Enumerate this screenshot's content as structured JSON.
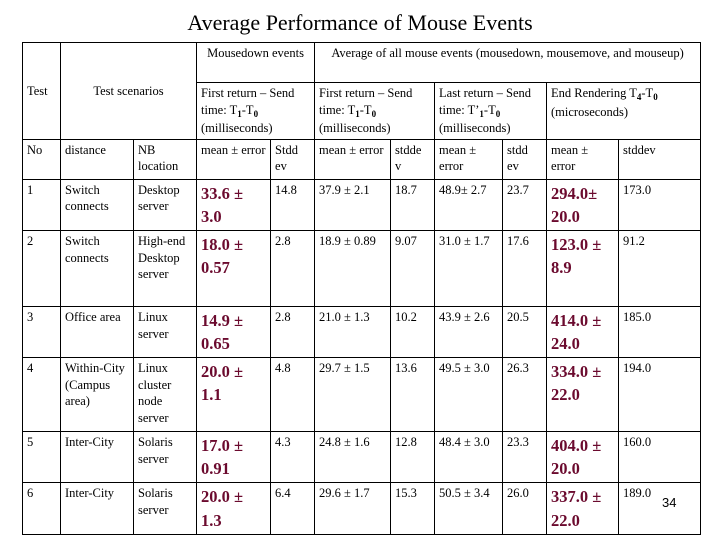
{
  "title": "Average Performance of Mouse Events",
  "header": {
    "test": "Test",
    "test_scenarios": "Test scenarios",
    "mousedown_events": "Mousedown events",
    "avg_all_events": "Average of all mouse events (mousedown, mousemove, and mouseup)",
    "first_return_a": "First return – Send time: T",
    "sub_1": "1",
    "sub_0": "0",
    "sub_4": "4",
    "dash": "-T",
    "ms": "(milliseconds)",
    "last_return_a": "Last return – Send time: T’",
    "last_return_ms": " (milliseconds)",
    "end_rendering_a": "End Rendering T",
    "end_rendering_b": " (microseconds)"
  },
  "subheader": {
    "no": "No",
    "distance": "distance",
    "nb_location": "NB location",
    "mean_error_1": "mean ± error",
    "stdd_1": "Stdd ev",
    "mean_error_2": "mean ± error",
    "stdd_2": "stdde v",
    "mean_error_3": "mean ± error",
    "stdd_3": "stdd ev",
    "mean_error_4": "mean ± error",
    "stdd_4": "stddev"
  },
  "rows": [
    {
      "no": "1",
      "distance": "Switch connects",
      "location": "Desktop server",
      "m1": "33.6 ± 3.0",
      "s1": "14.8",
      "m2": "37.9 ± 2.1",
      "s2": "18.7",
      "m3": "48.9± 2.7",
      "s3": "23.7",
      "m4": "294.0± 20.0",
      "s4": "173.0"
    },
    {
      "no": "2",
      "distance": "Switch connects",
      "location": "High-end Desktop server",
      "m1": "18.0 ± 0.57",
      "s1": "2.8",
      "m2": "18.9 ± 0.89",
      "s2": "9.07",
      "m3": "31.0 ± 1.7",
      "s3": "17.6",
      "m4": "123.0 ± 8.9",
      "s4": "91.2"
    },
    {
      "no": "3",
      "distance": "Office area",
      "location": "Linux server",
      "m1": "14.9 ± 0.65",
      "s1": "2.8",
      "m2": "21.0 ± 1.3",
      "s2": "10.2",
      "m3": "43.9 ± 2.6",
      "s3": "20.5",
      "m4": "414.0 ± 24.0",
      "s4": "185.0"
    },
    {
      "no": "4",
      "distance": "Within-City (Campus area)",
      "location": "Linux cluster node server",
      "m1": "20.0 ± 1.1",
      "s1": "4.8",
      "m2": "29.7 ± 1.5",
      "s2": "13.6",
      "m3": "49.5 ± 3.0",
      "s3": "26.3",
      "m4": "334.0 ± 22.0",
      "s4": "194.0"
    },
    {
      "no": "5",
      "distance": "Inter-City",
      "location": "Solaris server",
      "m1": "17.0 ± 0.91",
      "s1": "4.3",
      "m2": "24.8 ± 1.6",
      "s2": "12.8",
      "m3": "48.4 ± 3.0",
      "s3": "23.3",
      "m4": "404.0 ± 20.0",
      "s4": "160.0"
    },
    {
      "no": "6",
      "distance": "Inter-City",
      "location": "Solaris server",
      "m1": "20.0 ± 1.3",
      "s1": "6.4",
      "m2": "29.6 ± 1.7",
      "s2": "15.3",
      "m3": "50.5 ± 3.4",
      "s3": "26.0",
      "m4": "337.0 ± 22.0",
      "s4": "189.0"
    }
  ],
  "slide_number": "34",
  "colors": {
    "highlight": "#6b0a2e"
  }
}
